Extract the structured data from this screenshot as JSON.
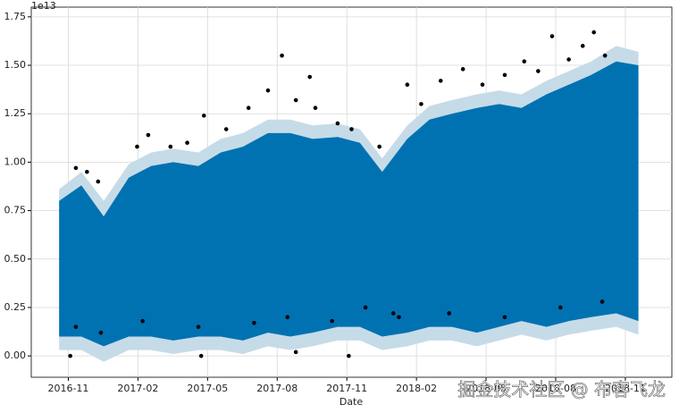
{
  "chart_data": {
    "type": "forecast",
    "x_label": "Date",
    "offset_label": "1e13",
    "watermark": "掘金技术社区 @ 布客飞龙",
    "grid": true,
    "xlim": [
      2016.7,
      2019.0
    ],
    "ylim": [
      -0.11,
      1.8
    ],
    "xticks": [
      {
        "value": 2016.833,
        "label": "2016-11"
      },
      {
        "value": 2017.083,
        "label": "2017-02"
      },
      {
        "value": 2017.333,
        "label": "2017-05"
      },
      {
        "value": 2017.583,
        "label": "2017-08"
      },
      {
        "value": 2017.833,
        "label": "2017-11"
      },
      {
        "value": 2018.083,
        "label": "2018-02"
      },
      {
        "value": 2018.333,
        "label": "2018-05"
      },
      {
        "value": 2018.583,
        "label": "2018-08"
      },
      {
        "value": 2018.833,
        "label": "2018-11"
      }
    ],
    "yticks": [
      {
        "value": 0,
        "label": "0.00"
      },
      {
        "value": 0.25,
        "label": "0.25"
      },
      {
        "value": 0.5,
        "label": "0.50"
      },
      {
        "value": 0.75,
        "label": "0.75"
      },
      {
        "value": 1,
        "label": "1.00"
      },
      {
        "value": 1.25,
        "label": "1.25"
      },
      {
        "value": 1.5,
        "label": "1.50"
      },
      {
        "value": 1.75,
        "label": "1.75"
      }
    ],
    "x": [
      2016.8,
      2016.88,
      2016.96,
      2017.05,
      2017.13,
      2017.21,
      2017.3,
      2017.38,
      2017.46,
      2017.55,
      2017.63,
      2017.71,
      2017.8,
      2017.88,
      2017.96,
      2018.05,
      2018.13,
      2018.21,
      2018.3,
      2018.38,
      2018.46,
      2018.55,
      2018.63,
      2018.71,
      2018.8,
      2018.88
    ],
    "bands": [
      {
        "color": "#c6dbe8",
        "upper": [
          0.86,
          0.95,
          0.8,
          0.99,
          1.05,
          1.07,
          1.05,
          1.12,
          1.15,
          1.22,
          1.22,
          1.19,
          1.2,
          1.17,
          1.02,
          1.19,
          1.29,
          1.32,
          1.35,
          1.37,
          1.35,
          1.42,
          1.47,
          1.52,
          1.6,
          1.57
        ],
        "lower": [
          0.03,
          0.03,
          -0.03,
          0.03,
          0.03,
          0.01,
          0.03,
          0.03,
          0.01,
          0.05,
          0.03,
          0.05,
          0.08,
          0.08,
          0.03,
          0.05,
          0.08,
          0.08,
          0.05,
          0.08,
          0.11,
          0.08,
          0.11,
          0.13,
          0.15,
          0.11
        ]
      },
      {
        "color": "#0072b2",
        "upper": [
          0.8,
          0.88,
          0.72,
          0.92,
          0.98,
          1.0,
          0.98,
          1.05,
          1.08,
          1.15,
          1.15,
          1.12,
          1.13,
          1.1,
          0.95,
          1.12,
          1.22,
          1.25,
          1.28,
          1.3,
          1.28,
          1.35,
          1.4,
          1.45,
          1.52,
          1.5
        ],
        "lower": [
          0.1,
          0.1,
          0.05,
          0.1,
          0.1,
          0.08,
          0.1,
          0.1,
          0.08,
          0.12,
          0.1,
          0.12,
          0.15,
          0.15,
          0.1,
          0.12,
          0.15,
          0.15,
          0.12,
          0.15,
          0.18,
          0.15,
          0.18,
          0.2,
          0.22,
          0.18
        ]
      }
    ],
    "points": {
      "color": "#000000",
      "x": [
        2016.86,
        2016.9,
        2016.94,
        2017.08,
        2017.12,
        2017.2,
        2017.26,
        2017.32,
        2017.4,
        2017.48,
        2017.55,
        2017.6,
        2017.65,
        2017.7,
        2017.72,
        2017.8,
        2017.85,
        2017.95,
        2018.05,
        2018.1,
        2018.17,
        2018.25,
        2018.32,
        2018.4,
        2018.47,
        2018.52,
        2018.57,
        2018.63,
        2018.68,
        2018.72,
        2018.76,
        2016.86,
        2016.95,
        2017.1,
        2017.3,
        2017.5,
        2017.62,
        2017.78,
        2017.9,
        2018.0,
        2018.02,
        2018.2,
        2018.4,
        2018.6,
        2018.75,
        2016.84,
        2017.31,
        2017.65,
        2017.84
      ],
      "values": [
        0.97,
        0.95,
        0.9,
        1.08,
        1.14,
        1.08,
        1.1,
        1.24,
        1.17,
        1.28,
        1.37,
        1.55,
        1.32,
        1.44,
        1.28,
        1.2,
        1.17,
        1.08,
        1.4,
        1.3,
        1.42,
        1.48,
        1.4,
        1.45,
        1.52,
        1.47,
        1.65,
        1.53,
        1.6,
        1.67,
        1.55,
        0.15,
        0.12,
        0.18,
        0.15,
        0.17,
        0.2,
        0.18,
        0.25,
        0.22,
        0.2,
        0.22,
        0.2,
        0.25,
        0.28,
        0.0,
        0.0,
        0.02,
        0.0
      ]
    }
  }
}
